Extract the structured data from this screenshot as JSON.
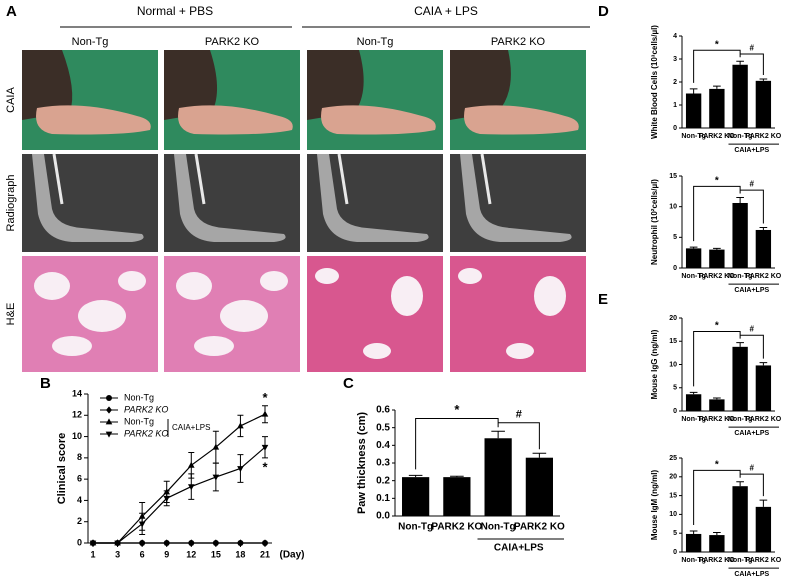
{
  "panel_a": {
    "label": "A",
    "groups": [
      "Normal + PBS",
      "CAIA + LPS"
    ],
    "columns": [
      "Non-Tg",
      "PARK2 KO",
      "Non-Tg",
      "PARK2 KO"
    ],
    "rows": [
      "CAIA",
      "Radiograph",
      "H&E"
    ]
  },
  "chart_data": [
    {
      "panel": "B",
      "type": "line",
      "y_label": "Clinical score",
      "x_label": "(Day)",
      "categories": [
        "1",
        "3",
        "6",
        "9",
        "12",
        "15",
        "18",
        "21"
      ],
      "ylim": [
        0,
        14
      ],
      "yticks": [
        0,
        2,
        4,
        6,
        8,
        10,
        12,
        14
      ],
      "series": [
        {
          "name": "Non-Tg",
          "marker": "circle",
          "color": "#000000",
          "values": [
            0,
            0,
            0,
            0,
            0,
            0,
            0,
            0
          ]
        },
        {
          "name": "PARK2 KO",
          "marker": "diamond",
          "color": "#000000",
          "values": [
            0,
            0,
            0,
            0,
            0,
            0,
            0,
            0
          ]
        },
        {
          "name": "Non-Tg",
          "marker": "triangle-up",
          "color": "#000000",
          "values": [
            0,
            0,
            2.5,
            4.8,
            7.3,
            9,
            11,
            12.1
          ],
          "errors": [
            0,
            0,
            1.3,
            1,
            1.2,
            1.5,
            1,
            0.8
          ]
        },
        {
          "name": "PARK2 KO",
          "marker": "triangle-down",
          "color": "#000000",
          "values": [
            0,
            0,
            1.8,
            4.2,
            5.3,
            6.2,
            7,
            9
          ],
          "errors": [
            0,
            0,
            1,
            0.7,
            1.2,
            1.3,
            1.3,
            1
          ]
        }
      ],
      "legend_group": "CAIA+LPS",
      "annotations": [
        "*",
        "*"
      ]
    },
    {
      "panel": "C",
      "type": "bar",
      "y_label": "Paw thickness (cm)",
      "categories": [
        "Non-Tg",
        "PARK2 KO",
        "Non-Tg",
        "PARK2 KO"
      ],
      "values": [
        0.22,
        0.22,
        0.44,
        0.33
      ],
      "errors": [
        0.01,
        0.005,
        0.04,
        0.025
      ],
      "color": "#000000",
      "ylim": [
        0,
        0.6
      ],
      "yticks": [
        {
          "value": 0,
          "label": "0.0"
        },
        {
          "value": 0.1,
          "label": "0.1"
        },
        {
          "value": 0.2,
          "label": "0.2"
        },
        {
          "value": 0.3,
          "label": "0.3"
        },
        {
          "value": 0.4,
          "label": "0.4"
        },
        {
          "value": 0.5,
          "label": "0.5"
        },
        {
          "value": 0.6,
          "label": "0.6"
        }
      ],
      "group_label": "CAIA+LPS",
      "annotations": [
        "*",
        "#"
      ]
    },
    {
      "panel": "D",
      "type": "bar",
      "y_label": "White Blood Cells (10³cells/µl)",
      "categories": [
        "Non-Tg",
        "PARK2 KO",
        "Non-Tg",
        "PARK2 KO"
      ],
      "values": [
        1.5,
        1.7,
        2.75,
        2.05
      ],
      "errors": [
        0.2,
        0.12,
        0.15,
        0.08
      ],
      "color": "#000000",
      "ylim": [
        0,
        4
      ],
      "yticks": [
        0,
        1,
        2,
        3,
        4
      ],
      "group_label": "CAIA+LPS",
      "annotations": [
        "*",
        "#"
      ]
    },
    {
      "type": "bar",
      "y_label": "Neutrophil (10²cells/µl)",
      "categories": [
        "Non-Tg",
        "PARK2 KO",
        "Non-Tg",
        "PARK2 KO"
      ],
      "values": [
        3.2,
        3.0,
        10.6,
        6.2
      ],
      "errors": [
        0.2,
        0.2,
        0.9,
        0.4
      ],
      "color": "#000000",
      "ylim": [
        0,
        15
      ],
      "yticks": [
        0,
        5,
        10,
        15
      ],
      "group_label": "CAIA+LPS",
      "annotations": [
        "*",
        "#"
      ]
    },
    {
      "panel": "E",
      "type": "bar",
      "y_label": "Mouse IgG (ng/ml)",
      "categories": [
        "Non-Tg",
        "PARK2 KO",
        "Non-Tg",
        "PARK2 KO"
      ],
      "values": [
        3.6,
        2.5,
        13.8,
        9.8
      ],
      "errors": [
        0.4,
        0.3,
        0.9,
        0.6
      ],
      "color": "#000000",
      "ylim": [
        0,
        20
      ],
      "yticks": [
        0,
        5,
        10,
        15,
        20
      ],
      "group_label": "CAIA+LPS",
      "annotations": [
        "*",
        "#"
      ]
    },
    {
      "type": "bar",
      "y_label": "Mouse IgM (ng/ml)",
      "categories": [
        "Non-Tg",
        "PARK2 KO",
        "Non-Tg",
        "PARK2 KO"
      ],
      "values": [
        4.8,
        4.5,
        17.5,
        12
      ],
      "errors": [
        0.8,
        0.7,
        1.2,
        1.8
      ],
      "color": "#000000",
      "ylim": [
        0,
        25
      ],
      "yticks": [
        0,
        5,
        10,
        15,
        20,
        25
      ],
      "group_label": "CAIA+LPS",
      "annotations": [
        "*",
        "#"
      ]
    }
  ]
}
